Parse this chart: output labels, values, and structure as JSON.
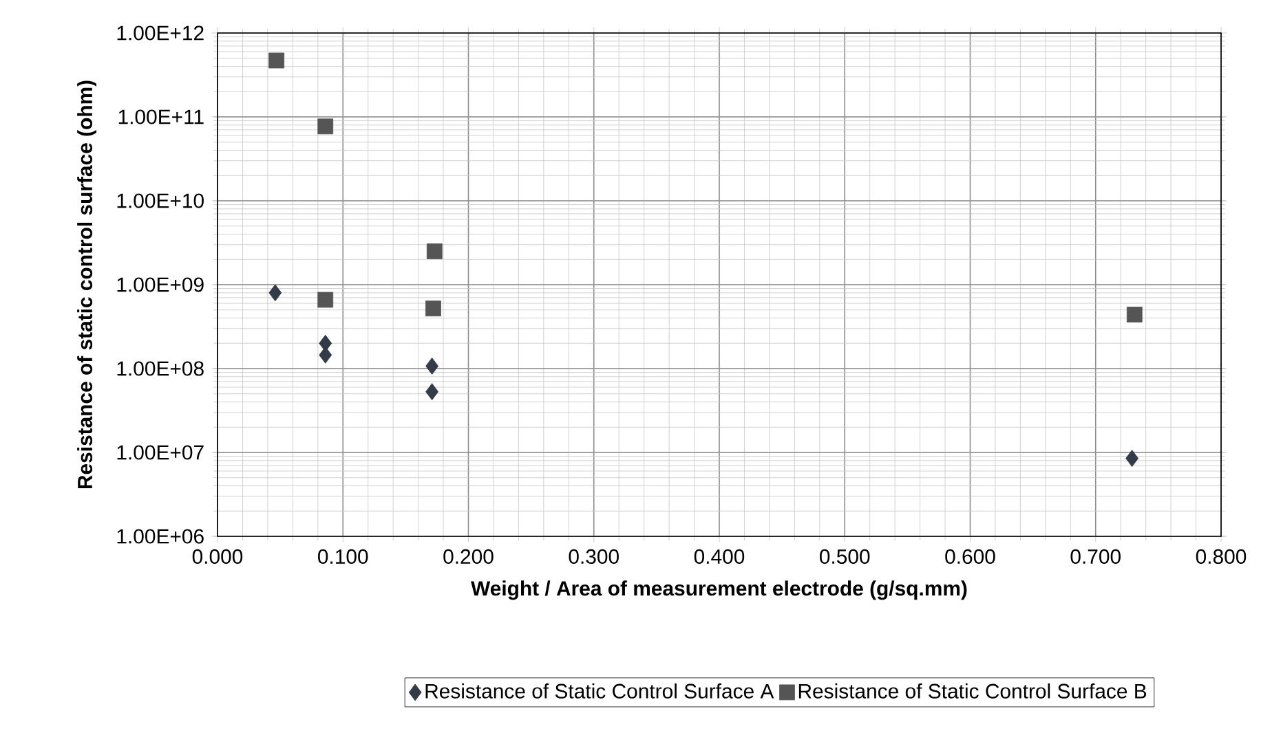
{
  "chart_data": {
    "type": "scatter",
    "xlabel": "Weight / Area of measurement electrode (g/sq.mm)",
    "ylabel": "Resistance of static control surface (ohm)",
    "series": [
      {
        "name": "Resistance of Static Control Surface A",
        "color": "#333a48",
        "marker": "diamond",
        "x": [
          0.046,
          0.086,
          0.086,
          0.171,
          0.171,
          0.729
        ],
        "values": [
          800000000.0,
          200000000.0,
          145000000.0,
          107000000.0,
          53000000.0,
          8500000.0
        ]
      },
      {
        "name": "Resistance of Static Control Surface B",
        "color": "#555555",
        "marker": "square",
        "x": [
          0.047,
          0.086,
          0.086,
          0.173,
          0.172,
          0.731
        ],
        "values": [
          470000000000.0,
          77000000000.0,
          660000000.0,
          2500000000.0,
          520000000.0,
          440000000.0
        ]
      }
    ],
    "log": "y",
    "xlim": [
      0,
      0.8
    ],
    "ylim": [
      1000000.0,
      1000000000000.0
    ],
    "xticks": [
      {
        "value": 0,
        "label": "0.000"
      },
      {
        "value": 0.1,
        "label": "0.100"
      },
      {
        "value": 0.2,
        "label": "0.200"
      },
      {
        "value": 0.3,
        "label": "0.300"
      },
      {
        "value": 0.4,
        "label": "0.400"
      },
      {
        "value": 0.5,
        "label": "0.500"
      },
      {
        "value": 0.6,
        "label": "0.600"
      },
      {
        "value": 0.7,
        "label": "0.700"
      },
      {
        "value": 0.8,
        "label": "0.800"
      }
    ],
    "yticks": [
      {
        "value": 1000000.0,
        "label": "1.00E+06"
      },
      {
        "value": 10000000.0,
        "label": "1.00E+07"
      },
      {
        "value": 100000000.0,
        "label": "1.00E+08"
      },
      {
        "value": 1000000000.0,
        "label": "1.00E+09"
      },
      {
        "value": 10000000000.0,
        "label": "1.00E+10"
      },
      {
        "value": 100000000000.0,
        "label": "1.00E+11"
      },
      {
        "value": 1000000000000.0,
        "label": "1.00E+12"
      }
    ],
    "grid": true,
    "legend": "bottom"
  }
}
